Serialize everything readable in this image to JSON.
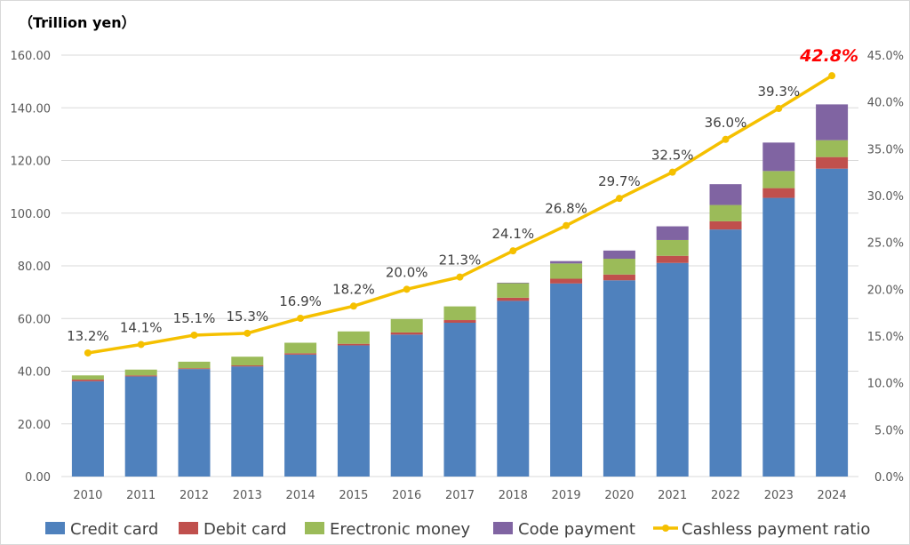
{
  "chart_data": {
    "type": "bar",
    "stacked": true,
    "unit_label": "（Trillion yen）",
    "categories": [
      "2010",
      "2011",
      "2012",
      "2013",
      "2014",
      "2015",
      "2016",
      "2017",
      "2018",
      "2019",
      "2020",
      "2021",
      "2022",
      "2023",
      "2024"
    ],
    "ylim": [
      0,
      160
    ],
    "yticks": [
      "0.00",
      "20.00",
      "40.00",
      "60.00",
      "80.00",
      "100.00",
      "120.00",
      "140.00",
      "160.00"
    ],
    "y2lim": [
      0,
      45
    ],
    "y2ticks": [
      "0.0%",
      "5.0%",
      "10.0%",
      "15.0%",
      "20.0%",
      "25.0%",
      "30.0%",
      "35.0%",
      "40.0%",
      "45.0%"
    ],
    "grid": true,
    "legend_placement": "bottom",
    "series": [
      {
        "name": "Credit card",
        "color": "#4f81bd",
        "values": [
          36.2,
          38.0,
          40.8,
          41.8,
          46.3,
          49.8,
          53.9,
          58.4,
          66.7,
          73.3,
          74.5,
          81.1,
          93.8,
          105.8,
          116.9
        ]
      },
      {
        "name": "Debit card",
        "color": "#c0504d",
        "values": [
          0.6,
          0.4,
          0.3,
          0.4,
          0.5,
          0.6,
          0.8,
          1.0,
          1.2,
          1.8,
          2.2,
          2.7,
          3.1,
          3.7,
          4.4
        ]
      },
      {
        "name": "Erectronic money",
        "color": "#9bbb59",
        "values": [
          1.6,
          2.2,
          2.5,
          3.3,
          4.0,
          4.7,
          5.1,
          5.2,
          5.5,
          5.8,
          6.0,
          6.0,
          6.2,
          6.5,
          6.4
        ]
      },
      {
        "name": "Code payment",
        "color": "#8064a2",
        "values": [
          0,
          0,
          0,
          0,
          0,
          0,
          0,
          0,
          0.2,
          0.9,
          3.1,
          5.2,
          7.9,
          10.8,
          13.6
        ]
      }
    ],
    "line": {
      "name": "Cashless payment ratio",
      "color": "#f5c000",
      "axis": "right",
      "values": [
        13.2,
        14.1,
        15.1,
        15.3,
        16.9,
        18.2,
        20.0,
        21.3,
        24.1,
        26.8,
        29.7,
        32.5,
        36.0,
        39.3,
        42.8
      ],
      "labels": [
        "13.2%",
        "14.1%",
        "15.1%",
        "15.3%",
        "16.9%",
        "18.2%",
        "20.0%",
        "21.3%",
        "24.1%",
        "26.8%",
        "29.7%",
        "32.5%",
        "36.0%",
        "39.3%",
        "42.8%"
      ],
      "highlight_color": "#ff0000"
    }
  }
}
